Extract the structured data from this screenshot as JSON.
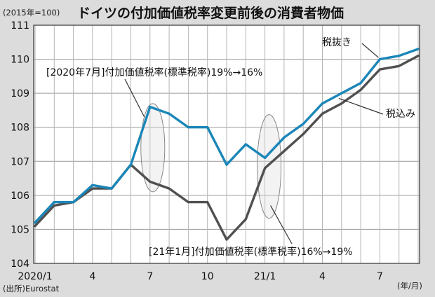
{
  "chart_data": {
    "type": "line",
    "title": "ドイツの付加価値税率変更前後の消費者物価",
    "unit_label": "(2015年=100)",
    "x_unit_label": "(年/月)",
    "source": "(出所)Eurostat",
    "x": [
      "2020/1",
      "2020/2",
      "2020/3",
      "2020/4",
      "2020/5",
      "2020/6",
      "2020/7",
      "2020/8",
      "2020/9",
      "2020/10",
      "2020/11",
      "2020/12",
      "2021/1",
      "2021/2",
      "2021/3",
      "2021/4",
      "2021/5",
      "2021/6",
      "2021/7",
      "2021/8",
      "2021/9"
    ],
    "x_tick_labels": [
      "2020/1",
      "",
      "",
      "4",
      "",
      "",
      "7",
      "",
      "",
      "10",
      "",
      "",
      "21/1",
      "",
      "",
      "4",
      "",
      "",
      "7",
      "",
      ""
    ],
    "ylim": [
      104,
      111
    ],
    "y_ticks": [
      104,
      105,
      106,
      107,
      108,
      109,
      110,
      111
    ],
    "grid": true,
    "series": [
      {
        "name": "税抜き",
        "color": "#1a86b8",
        "values": [
          105.2,
          105.8,
          105.8,
          106.3,
          106.2,
          106.9,
          108.6,
          108.4,
          108.0,
          108.0,
          106.9,
          107.5,
          107.1,
          107.7,
          108.1,
          108.7,
          109.0,
          109.3,
          110.0,
          110.1,
          110.3
        ]
      },
      {
        "name": "税込み",
        "color": "#505050",
        "values": [
          105.1,
          105.7,
          105.8,
          106.2,
          106.2,
          106.9,
          106.4,
          106.2,
          105.8,
          105.8,
          104.7,
          105.3,
          106.8,
          107.3,
          107.8,
          108.4,
          108.7,
          109.1,
          109.7,
          109.8,
          110.1
        ]
      }
    ],
    "annotations": [
      {
        "text": "[2020年7月]付加価値税率(標準税率)19%→16%"
      },
      {
        "text": "[21年1月]付加価値税率(標準税率)16%→19%"
      }
    ]
  }
}
